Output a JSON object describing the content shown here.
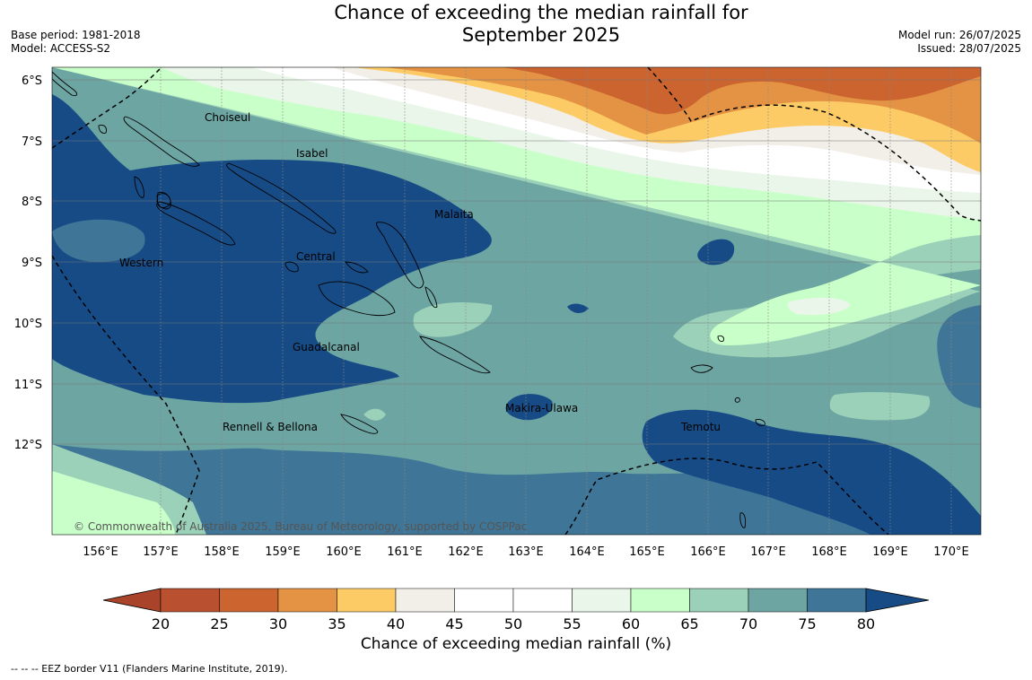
{
  "title": {
    "line1": "Chance of exceeding the median rainfall for",
    "line2": "September 2025"
  },
  "meta": {
    "base_period": "Base period: 1981-2018",
    "model": "Model: ACCESS-S2",
    "model_run": "Model run: 26/07/2025",
    "issued": "Issued: 28/07/2025"
  },
  "map": {
    "lat_labels": [
      "6°S",
      "7°S",
      "8°S",
      "9°S",
      "10°S",
      "11°S",
      "12°S"
    ],
    "lon_labels": [
      "156°E",
      "157°E",
      "158°E",
      "159°E",
      "160°E",
      "161°E",
      "162°E",
      "163°E",
      "164°E",
      "165°E",
      "166°E",
      "167°E",
      "168°E",
      "169°E",
      "170°E"
    ],
    "places": [
      {
        "name": "Choiseul"
      },
      {
        "name": "Isabel"
      },
      {
        "name": "Malaita"
      },
      {
        "name": "Western"
      },
      {
        "name": "Central"
      },
      {
        "name": "Guadalcanal"
      },
      {
        "name": "Makira-Ulawa"
      },
      {
        "name": "Rennell & Bellona"
      },
      {
        "name": "Temotu"
      }
    ],
    "copyright": "© Commonwealth of Australia 2025, Bureau of Meteorology, supported by COSPPac"
  },
  "colorbar": {
    "ticks": [
      "20",
      "25",
      "30",
      "35",
      "40",
      "45",
      "50",
      "55",
      "60",
      "65",
      "70",
      "75",
      "80"
    ],
    "colors": [
      "#a9442a",
      "#b9502f",
      "#cc6430",
      "#e39343",
      "#fdcb66",
      "#f2eee8",
      "#ffffff",
      "#ffffff",
      "#e9f6e9",
      "#c9ffc9",
      "#9bd1b8",
      "#6da5a2",
      "#3f7597",
      "#174b86"
    ],
    "label": "Chance of exceeding median rainfall (%)"
  },
  "footnote": "--  --  -- EEZ border V11 (Flanders Marine Institute, 2019)."
}
